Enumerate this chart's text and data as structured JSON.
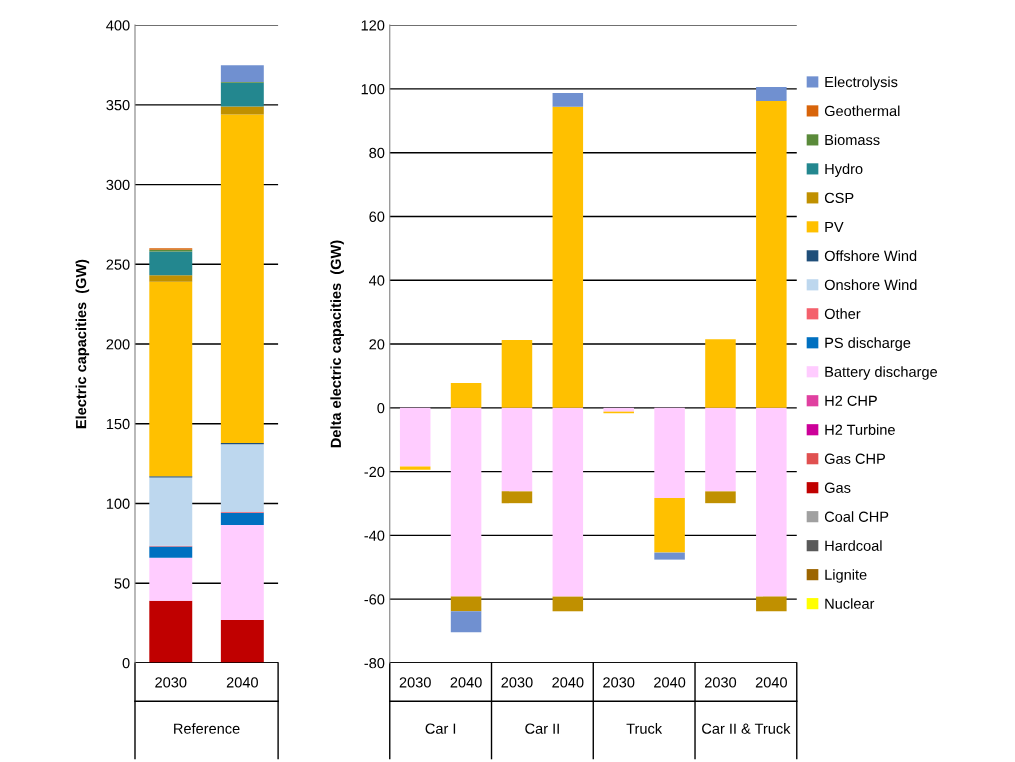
{
  "chart_data": [
    {
      "type": "bar",
      "stacked": true,
      "ylabel": "Electric capacities  (GW)",
      "categories": [
        "2030",
        "2040"
      ],
      "annotations": [
        "Reference"
      ],
      "ylim": [
        0,
        400
      ],
      "yticks": [
        0,
        50,
        100,
        150,
        200,
        250,
        300,
        350,
        400
      ],
      "grid": "y",
      "series": [
        {
          "color": "#ffff00",
          "values": [
            0,
            0
          ]
        },
        {
          "color": "#9c6500",
          "values": [
            0,
            0
          ]
        },
        {
          "color": "#595959",
          "values": [
            0,
            0
          ]
        },
        {
          "color": "#a0a0a0",
          "values": [
            0,
            0
          ]
        },
        {
          "color": "#c00000",
          "values": [
            39,
            27
          ]
        },
        {
          "color": "#e05050",
          "values": [
            0,
            0
          ]
        },
        {
          "color": "#cc0099",
          "values": [
            0,
            0
          ]
        },
        {
          "color": "#e040a0",
          "values": [
            0,
            0
          ]
        },
        {
          "color": "#ffccff",
          "values": [
            27,
            59.5
          ]
        },
        {
          "color": "#0070c0",
          "values": [
            7,
            7.7
          ]
        },
        {
          "color": "#f4606c",
          "values": [
            0.5,
            0.5
          ]
        },
        {
          "color": "#bdd7ee",
          "values": [
            42.8,
            42.5
          ]
        },
        {
          "color": "#1f4e79",
          "values": [
            0.8,
            0.7
          ]
        },
        {
          "color": "#ffc000",
          "values": [
            122,
            206
          ]
        },
        {
          "color": "#c09000",
          "values": [
            4,
            5
          ]
        },
        {
          "color": "#23878f",
          "values": [
            15,
            15
          ]
        },
        {
          "color": "#5a8a3a",
          "values": [
            1,
            0.5
          ]
        },
        {
          "color": "#d8640a",
          "values": [
            1,
            0
          ]
        },
        {
          "color": "#7090d0",
          "values": [
            0,
            10.5
          ]
        }
      ]
    },
    {
      "type": "bar",
      "stacked": true,
      "ylabel": "Delta electric capacities  (GW)",
      "categories": [
        "2030",
        "2040",
        "2030",
        "2040",
        "2030",
        "2040",
        "2030",
        "2040"
      ],
      "annotations": [
        "Car I",
        "Car II",
        "Truck",
        "Car II & Truck"
      ],
      "ylim": [
        -80,
        120
      ],
      "yticks": [
        -80,
        -60,
        -40,
        -20,
        0,
        20,
        40,
        60,
        80,
        100,
        120
      ],
      "grid": "y",
      "legend": "right",
      "series": [
        {
          "name": "Nuclear",
          "color": "#ffff00",
          "values": [
            0,
            0,
            0,
            0,
            0,
            0,
            0,
            0
          ]
        },
        {
          "name": "Lignite",
          "color": "#9c6500",
          "values": [
            0,
            0,
            0,
            0,
            0,
            0,
            0,
            0
          ]
        },
        {
          "name": "Hardcoal",
          "color": "#595959",
          "values": [
            0,
            0,
            0,
            0,
            0,
            0,
            0,
            0
          ]
        },
        {
          "name": "Coal CHP",
          "color": "#a0a0a0",
          "values": [
            0,
            0,
            0,
            0,
            0,
            0,
            0,
            0
          ]
        },
        {
          "name": "Gas",
          "color": "#c00000",
          "values": [
            0,
            0,
            0,
            0,
            0,
            0,
            0,
            0
          ]
        },
        {
          "name": "Gas CHP",
          "color": "#e05050",
          "values": [
            0,
            0,
            0,
            0,
            0,
            0,
            0,
            0
          ]
        },
        {
          "name": "H2 Turbine",
          "color": "#cc0099",
          "values": [
            0,
            0,
            0,
            0,
            0,
            0,
            0,
            0
          ]
        },
        {
          "name": "H2 CHP",
          "color": "#e040a0",
          "values": [
            0,
            0,
            0,
            0,
            0,
            0,
            0,
            0
          ]
        },
        {
          "name": "Battery discharge",
          "color": "#ffccff",
          "values": [
            -18.4,
            -59.2,
            -26.2,
            -59.2,
            -1.2,
            -28.3,
            -26.2,
            -59.2
          ]
        },
        {
          "name": "PS discharge",
          "color": "#0070c0",
          "values": [
            0,
            0,
            0,
            0,
            0,
            0,
            0,
            0
          ]
        },
        {
          "name": "Other",
          "color": "#f4606c",
          "values": [
            0,
            0,
            0,
            0,
            0,
            0,
            0,
            0
          ]
        },
        {
          "name": "Onshore Wind",
          "color": "#bdd7ee",
          "values": [
            0,
            0,
            0,
            0,
            0,
            0,
            0,
            0
          ]
        },
        {
          "name": "Offshore Wind",
          "color": "#1f4e79",
          "values": [
            0,
            0,
            0,
            0,
            0,
            0,
            0,
            0
          ]
        },
        {
          "name": "PV",
          "color": "#ffc000",
          "values": [
            -1,
            7.8,
            21.3,
            94.4,
            -0.5,
            -17.1,
            21.5,
            96.2
          ]
        },
        {
          "name": "CSP",
          "color": "#c09000",
          "values": [
            0,
            -4.6,
            -3.7,
            -4.6,
            0,
            0,
            -3.7,
            -4.6
          ]
        },
        {
          "name": "Hydro",
          "color": "#23878f",
          "values": [
            0,
            0,
            0,
            0,
            0,
            0,
            0,
            0
          ]
        },
        {
          "name": "Biomass",
          "color": "#5a8a3a",
          "values": [
            0,
            0,
            0,
            0,
            0,
            0,
            0,
            0
          ]
        },
        {
          "name": "Geothermal",
          "color": "#d8640a",
          "values": [
            0,
            0,
            0,
            0,
            0,
            0,
            0,
            0
          ]
        },
        {
          "name": "Electrolysis",
          "color": "#7090d0",
          "values": [
            0,
            -6.6,
            0,
            4.3,
            0,
            -2.2,
            0,
            4.4
          ]
        }
      ]
    }
  ]
}
